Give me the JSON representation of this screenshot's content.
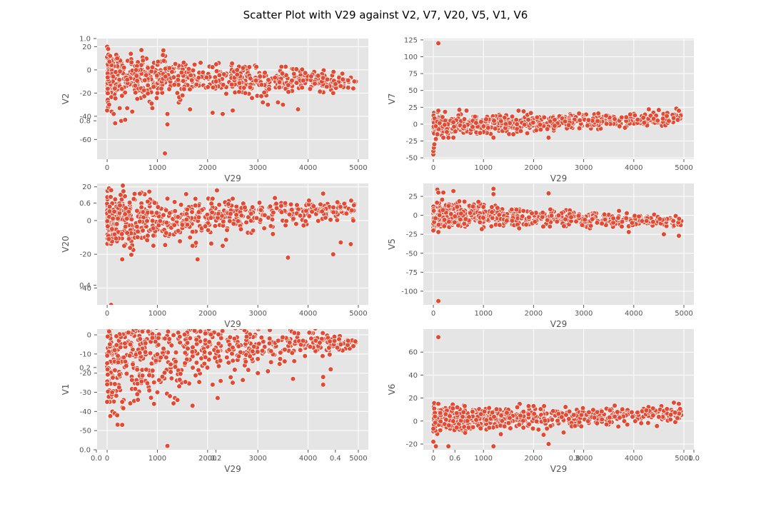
{
  "figure": {
    "title": "Scatter Plot with V29 against V2, V7, V20, V5, V1, V6",
    "style": "ggplot",
    "marker_color": "#E24A33",
    "marker_edge": "#ffffff",
    "background": "#E5E5E5",
    "grid_color": "#ffffff"
  },
  "chart_data": [
    {
      "type": "scatter",
      "xlabel": "V29",
      "ylabel": "V2",
      "xlim": [
        -200,
        5200
      ],
      "ylim": [
        -77,
        27
      ],
      "xticks": [
        0,
        1000,
        2000,
        3000,
        4000,
        5000
      ],
      "yticks": [
        -60,
        -40,
        -20,
        0,
        20
      ],
      "points": [
        [
          0,
          20
        ],
        [
          0,
          -35
        ],
        [
          20,
          18
        ],
        [
          40,
          -30
        ],
        [
          60,
          12
        ],
        [
          90,
          -36
        ],
        [
          130,
          -38
        ],
        [
          160,
          -46
        ],
        [
          200,
          10
        ],
        [
          250,
          -33
        ],
        [
          280,
          -44
        ],
        [
          360,
          -43
        ],
        [
          400,
          -33
        ],
        [
          500,
          -36
        ],
        [
          600,
          -25
        ],
        [
          900,
          -33
        ],
        [
          1000,
          -20
        ],
        [
          1150,
          -72
        ],
        [
          1200,
          -47
        ],
        [
          1200,
          -38
        ],
        [
          1500,
          -22
        ],
        [
          1650,
          -34
        ],
        [
          2100,
          -37
        ],
        [
          2300,
          -38
        ],
        [
          2500,
          -35
        ],
        [
          2750,
          -20
        ],
        [
          3100,
          -28
        ],
        [
          3200,
          -30
        ],
        [
          3400,
          -28
        ],
        [
          3500,
          -30
        ],
        [
          3800,
          -34
        ],
        [
          4500,
          -20
        ],
        [
          4650,
          -14
        ],
        [
          4900,
          -16
        ]
      ],
      "band": {
        "x_range": [
          0,
          4950
        ],
        "center": [
          -5,
          -11
        ],
        "spread": [
          22,
          6
        ]
      }
    },
    {
      "type": "scatter",
      "xlabel": "V29",
      "ylabel": "V7",
      "xlim": [
        -200,
        5200
      ],
      "ylim": [
        -52,
        127
      ],
      "xticks": [
        0,
        1000,
        2000,
        3000,
        4000,
        5000
      ],
      "yticks": [
        -50,
        -25,
        0,
        25,
        50,
        75,
        100,
        125
      ],
      "points": [
        [
          100,
          120
        ],
        [
          0,
          -45
        ],
        [
          0,
          -40
        ],
        [
          10,
          -35
        ],
        [
          20,
          -30
        ],
        [
          50,
          -22
        ],
        [
          80,
          -15
        ],
        [
          90,
          18
        ],
        [
          100,
          20
        ],
        [
          200,
          -20
        ],
        [
          300,
          -20
        ],
        [
          400,
          -20
        ],
        [
          1200,
          -20
        ],
        [
          1700,
          20
        ],
        [
          2300,
          -20
        ],
        [
          4300,
          22
        ],
        [
          4500,
          21
        ],
        [
          4850,
          23
        ],
        [
          4900,
          20
        ]
      ],
      "band": {
        "x_range": [
          0,
          4950
        ],
        "center": [
          -2,
          8
        ],
        "spread": [
          16,
          10
        ]
      }
    },
    {
      "type": "scatter",
      "xlabel": "V29",
      "ylabel": "V20",
      "xlim": [
        -200,
        5200
      ],
      "ylim": [
        -50,
        22
      ],
      "xticks": [
        0,
        1000,
        2000,
        3000,
        4000,
        5000
      ],
      "yticks": [
        -40,
        -20,
        0,
        20
      ],
      "points": [
        [
          80,
          -50
        ],
        [
          80,
          18
        ],
        [
          70,
          14
        ],
        [
          300,
          -23
        ],
        [
          1200,
          13
        ],
        [
          1700,
          -15
        ],
        [
          1800,
          -23
        ],
        [
          2100,
          13
        ],
        [
          2300,
          -15
        ],
        [
          2500,
          13
        ],
        [
          3300,
          -8
        ],
        [
          3600,
          -22
        ],
        [
          4300,
          16
        ],
        [
          4500,
          -20
        ],
        [
          4650,
          -13
        ],
        [
          4850,
          -14
        ],
        [
          4900,
          0
        ]
      ],
      "band": {
        "x_range": [
          0,
          4950
        ],
        "center": [
          -1,
          7
        ],
        "spread": [
          18,
          5
        ]
      }
    },
    {
      "type": "scatter",
      "xlabel": "V29",
      "ylabel": "V5",
      "xlim": [
        -200,
        5200
      ],
      "ylim": [
        -118,
        42
      ],
      "xticks": [
        0,
        1000,
        2000,
        3000,
        4000,
        5000
      ],
      "yticks": [
        -100,
        -75,
        -50,
        -25,
        0,
        25
      ],
      "points": [
        [
          100,
          -113
        ],
        [
          80,
          34
        ],
        [
          100,
          30
        ],
        [
          200,
          30
        ],
        [
          400,
          32
        ],
        [
          1200,
          35
        ],
        [
          1200,
          28
        ],
        [
          2300,
          29
        ],
        [
          0,
          -20
        ],
        [
          100,
          -22
        ],
        [
          3900,
          -22
        ],
        [
          4600,
          -25
        ],
        [
          4900,
          -27
        ]
      ],
      "band": {
        "x_range": [
          0,
          4950
        ],
        "center": [
          1,
          -8
        ],
        "spread": [
          18,
          8
        ]
      }
    },
    {
      "type": "scatter",
      "xlabel": "V29",
      "ylabel": "V1",
      "xlim": [
        -200,
        5200
      ],
      "ylim": [
        -60,
        3
      ],
      "xticks": [
        0,
        1000,
        2000,
        3000,
        4000,
        5000
      ],
      "yticks": [
        -50,
        -40,
        -30,
        -20,
        -10,
        0
      ],
      "points": [
        [
          150,
          -41
        ],
        [
          200,
          -42
        ],
        [
          300,
          -47
        ],
        [
          1200,
          -58
        ],
        [
          1700,
          -37
        ],
        [
          1250,
          -32
        ],
        [
          1350,
          -33
        ],
        [
          2200,
          -33
        ],
        [
          2100,
          -26
        ],
        [
          2500,
          -25
        ],
        [
          3000,
          -20
        ],
        [
          3200,
          -19
        ],
        [
          3700,
          -23
        ],
        [
          4300,
          -22
        ],
        [
          4450,
          -18
        ],
        [
          4300,
          -26
        ],
        [
          600,
          -31
        ],
        [
          1000,
          -30
        ],
        [
          1400,
          -34
        ],
        [
          0,
          -35
        ],
        [
          100,
          -30
        ],
        [
          300,
          -35
        ]
      ],
      "band": {
        "x_range": [
          0,
          4950
        ],
        "center": [
          -10,
          -4
        ],
        "spread": [
          30,
          3
        ]
      }
    },
    {
      "type": "scatter",
      "xlabel": "V29",
      "ylabel": "V6",
      "xlim": [
        -200,
        5200
      ],
      "ylim": [
        -25,
        80
      ],
      "xticks": [
        0,
        1000,
        2000,
        3000,
        4000,
        5000
      ],
      "yticks": [
        -20,
        0,
        20,
        40,
        60
      ],
      "points": [
        [
          100,
          73
        ],
        [
          100,
          15
        ],
        [
          0,
          -18
        ],
        [
          50,
          -22
        ],
        [
          300,
          -22
        ],
        [
          1200,
          -22
        ],
        [
          2300,
          -20
        ],
        [
          2200,
          -12
        ],
        [
          2600,
          -10
        ],
        [
          1900,
          13
        ],
        [
          2000,
          13
        ],
        [
          4800,
          16
        ],
        [
          4900,
          15
        ]
      ],
      "band": {
        "x_range": [
          0,
          4950
        ],
        "center": [
          1,
          6
        ],
        "spread": [
          12,
          7
        ]
      }
    }
  ],
  "overlay_axis": {
    "xticks": [
      "0.0",
      "0.2",
      "0.4",
      "0.6",
      "0.8",
      "1.0"
    ],
    "yticks": [
      "0.0",
      "0.2",
      "0.4",
      "0.6",
      "0.8",
      "1.0"
    ]
  }
}
